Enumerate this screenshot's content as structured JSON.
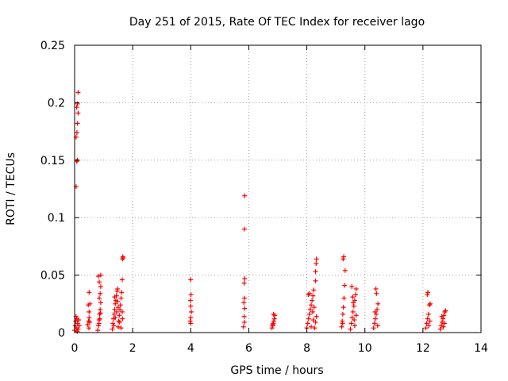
{
  "chart_data": {
    "type": "scatter",
    "title": "Day 251 of 2015, Rate Of TEC Index for receiver lago",
    "xlabel": "GPS time / hours",
    "ylabel": "ROTI / TECUs",
    "xlim": [
      0,
      14
    ],
    "ylim": [
      0,
      0.25
    ],
    "xticks": [
      0,
      2,
      4,
      6,
      8,
      10,
      12,
      14
    ],
    "yticks": [
      0,
      0.05,
      0.1,
      0.15,
      0.2,
      0.25
    ],
    "xtick_labels": [
      "0",
      "2",
      "4",
      "6",
      "8",
      "10",
      "12",
      "14"
    ],
    "ytick_labels": [
      "0",
      "0.05",
      "0.1",
      "0.15",
      "0.2",
      "0.25"
    ],
    "grid": true,
    "marker": "+",
    "color": "#ff0000",
    "series": [
      {
        "name": "ROTI",
        "points": [
          [
            0.0,
            0.002
          ],
          [
            0.02,
            0.006
          ],
          [
            0.04,
            0.01
          ],
          [
            0.06,
            0.004
          ],
          [
            0.08,
            0.012
          ],
          [
            0.1,
            0.008
          ],
          [
            0.12,
            0.003
          ],
          [
            0.14,
            0.011
          ],
          [
            0.16,
            0.006
          ],
          [
            0.05,
            0.014
          ],
          [
            0.09,
            0.001
          ],
          [
            0.05,
            0.127
          ],
          [
            0.07,
            0.149
          ],
          [
            0.1,
            0.15
          ],
          [
            0.05,
            0.17
          ],
          [
            0.08,
            0.174
          ],
          [
            0.1,
            0.182
          ],
          [
            0.12,
            0.191
          ],
          [
            0.07,
            0.196
          ],
          [
            0.1,
            0.199
          ],
          [
            0.12,
            0.209
          ],
          [
            0.45,
            0.007
          ],
          [
            0.48,
            0.01
          ],
          [
            0.5,
            0.013
          ],
          [
            0.52,
            0.009
          ],
          [
            0.5,
            0.018
          ],
          [
            0.47,
            0.024
          ],
          [
            0.53,
            0.025
          ],
          [
            0.5,
            0.035
          ],
          [
            0.49,
            0.004
          ],
          [
            0.8,
            0.002
          ],
          [
            0.82,
            0.006
          ],
          [
            0.84,
            0.011
          ],
          [
            0.86,
            0.016
          ],
          [
            0.88,
            0.02
          ],
          [
            0.9,
            0.026
          ],
          [
            0.85,
            0.03
          ],
          [
            0.88,
            0.034
          ],
          [
            0.9,
            0.04
          ],
          [
            0.85,
            0.044
          ],
          [
            0.82,
            0.049
          ],
          [
            0.9,
            0.05
          ],
          [
            0.87,
            0.012
          ],
          [
            0.84,
            0.008
          ],
          [
            0.89,
            0.017
          ],
          [
            1.3,
            0.003
          ],
          [
            1.32,
            0.008
          ],
          [
            1.34,
            0.012
          ],
          [
            1.36,
            0.016
          ],
          [
            1.38,
            0.02
          ],
          [
            1.4,
            0.025
          ],
          [
            1.42,
            0.028
          ],
          [
            1.44,
            0.032
          ],
          [
            1.46,
            0.036
          ],
          [
            1.48,
            0.038
          ],
          [
            1.5,
            0.005
          ],
          [
            1.52,
            0.01
          ],
          [
            1.54,
            0.015
          ],
          [
            1.56,
            0.02
          ],
          [
            1.58,
            0.024
          ],
          [
            1.6,
            0.03
          ],
          [
            1.62,
            0.035
          ],
          [
            1.35,
            0.006
          ],
          [
            1.45,
            0.018
          ],
          [
            1.55,
            0.009
          ],
          [
            1.4,
            0.013
          ],
          [
            1.5,
            0.022
          ],
          [
            1.6,
            0.004
          ],
          [
            1.38,
            0.031
          ],
          [
            1.48,
            0.027
          ],
          [
            1.64,
            0.046
          ],
          [
            1.65,
            0.064
          ],
          [
            1.66,
            0.066
          ],
          [
            1.67,
            0.065
          ],
          [
            1.65,
            0.012
          ],
          [
            1.64,
            0.018
          ],
          [
            3.98,
            0.01
          ],
          [
            4.0,
            0.013
          ],
          [
            4.02,
            0.018
          ],
          [
            4.0,
            0.023
          ],
          [
            3.99,
            0.028
          ],
          [
            4.01,
            0.033
          ],
          [
            4.0,
            0.046
          ],
          [
            4.0,
            0.008
          ],
          [
            5.82,
            0.005
          ],
          [
            5.85,
            0.009
          ],
          [
            5.84,
            0.014
          ],
          [
            5.86,
            0.021
          ],
          [
            5.83,
            0.026
          ],
          [
            5.85,
            0.03
          ],
          [
            5.84,
            0.043
          ],
          [
            5.86,
            0.047
          ],
          [
            5.85,
            0.09
          ],
          [
            5.86,
            0.119
          ],
          [
            6.8,
            0.004
          ],
          [
            6.82,
            0.006
          ],
          [
            6.84,
            0.008
          ],
          [
            6.86,
            0.01
          ],
          [
            6.88,
            0.012
          ],
          [
            6.9,
            0.015
          ],
          [
            6.85,
            0.016
          ],
          [
            6.83,
            0.007
          ],
          [
            8.0,
            0.004
          ],
          [
            8.03,
            0.008
          ],
          [
            8.06,
            0.012
          ],
          [
            8.09,
            0.016
          ],
          [
            8.12,
            0.02
          ],
          [
            8.15,
            0.024
          ],
          [
            8.18,
            0.028
          ],
          [
            8.21,
            0.032
          ],
          [
            8.24,
            0.037
          ],
          [
            8.27,
            0.004
          ],
          [
            8.3,
            0.009
          ],
          [
            8.33,
            0.014
          ],
          [
            8.05,
            0.033
          ],
          [
            8.1,
            0.034
          ],
          [
            8.2,
            0.018
          ],
          [
            8.25,
            0.022
          ],
          [
            8.3,
            0.045
          ],
          [
            8.3,
            0.053
          ],
          [
            8.32,
            0.06
          ],
          [
            8.33,
            0.064
          ],
          [
            8.15,
            0.005
          ],
          [
            8.22,
            0.011
          ],
          [
            9.2,
            0.005
          ],
          [
            9.22,
            0.01
          ],
          [
            9.24,
            0.016
          ],
          [
            9.26,
            0.022
          ],
          [
            9.28,
            0.03
          ],
          [
            9.3,
            0.041
          ],
          [
            9.32,
            0.054
          ],
          [
            9.25,
            0.064
          ],
          [
            9.27,
            0.066
          ],
          [
            9.23,
            0.008
          ],
          [
            9.5,
            0.003
          ],
          [
            9.53,
            0.008
          ],
          [
            9.56,
            0.013
          ],
          [
            9.59,
            0.018
          ],
          [
            9.62,
            0.023
          ],
          [
            9.65,
            0.028
          ],
          [
            9.68,
            0.033
          ],
          [
            9.7,
            0.038
          ],
          [
            9.55,
            0.04
          ],
          [
            9.6,
            0.026
          ],
          [
            9.65,
            0.006
          ],
          [
            9.7,
            0.015
          ],
          [
            9.58,
            0.031
          ],
          [
            9.63,
            0.011
          ],
          [
            10.3,
            0.004
          ],
          [
            10.33,
            0.008
          ],
          [
            10.36,
            0.012
          ],
          [
            10.39,
            0.016
          ],
          [
            10.42,
            0.02
          ],
          [
            10.45,
            0.025
          ],
          [
            10.4,
            0.034
          ],
          [
            10.38,
            0.038
          ],
          [
            10.44,
            0.006
          ],
          [
            10.35,
            0.018
          ],
          [
            12.1,
            0.004
          ],
          [
            12.13,
            0.008
          ],
          [
            12.16,
            0.012
          ],
          [
            12.19,
            0.016
          ],
          [
            12.22,
            0.024
          ],
          [
            12.25,
            0.025
          ],
          [
            12.15,
            0.033
          ],
          [
            12.17,
            0.035
          ],
          [
            12.2,
            0.006
          ],
          [
            12.24,
            0.01
          ],
          [
            12.6,
            0.003
          ],
          [
            12.63,
            0.006
          ],
          [
            12.66,
            0.009
          ],
          [
            12.69,
            0.012
          ],
          [
            12.72,
            0.015
          ],
          [
            12.75,
            0.018
          ],
          [
            12.78,
            0.019
          ],
          [
            12.7,
            0.005
          ],
          [
            12.65,
            0.014
          ],
          [
            12.74,
            0.008
          ]
        ]
      }
    ]
  }
}
